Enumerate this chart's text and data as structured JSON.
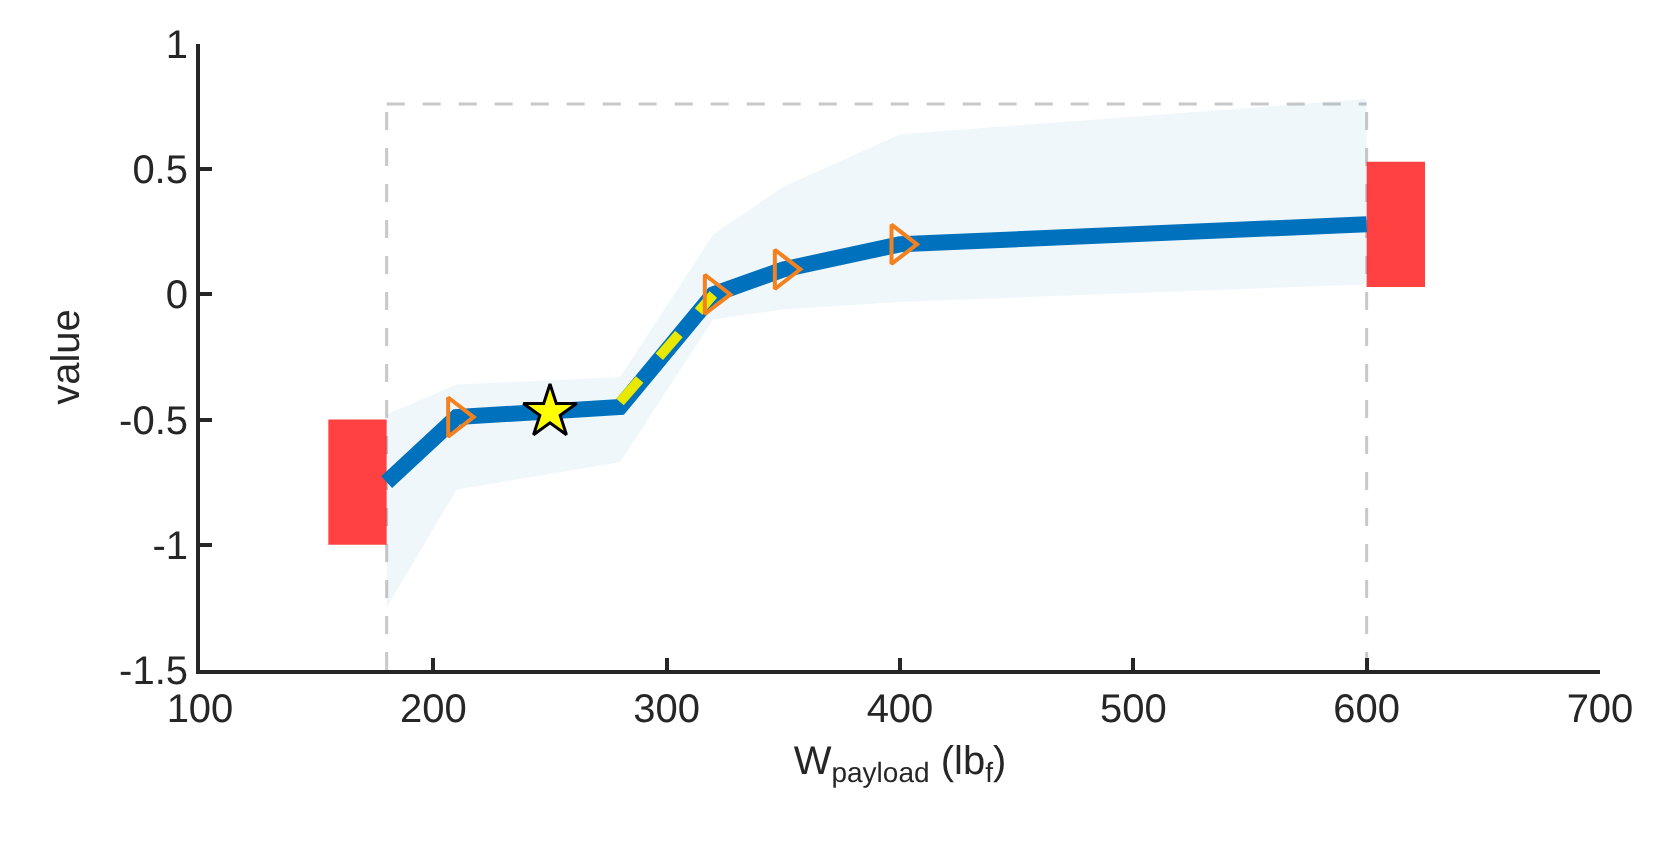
{
  "chart_data": {
    "type": "line",
    "xlabel": "W$_{payload}$ (lb$_{f}$)",
    "ylabel": "value",
    "xlim": [
      100,
      700
    ],
    "ylim": [
      -1.5,
      1
    ],
    "xticks": [
      100,
      200,
      300,
      400,
      500,
      600,
      700
    ],
    "yticks": [
      -1.5,
      -1,
      -0.5,
      0,
      0.5,
      1
    ],
    "grid": false,
    "series": [
      {
        "color": "#0072bd",
        "x": [
          180,
          210,
          280,
          320,
          350,
          400,
          600
        ],
        "values": [
          -0.75,
          -0.49,
          -0.45,
          0.0,
          0.1,
          0.2,
          0.28
        ],
        "lower": [
          -1.25,
          -0.78,
          -0.67,
          -0.1,
          -0.06,
          -0.03,
          0.04
        ],
        "upper": [
          -0.48,
          -0.36,
          -0.33,
          0.24,
          0.43,
          0.64,
          0.78
        ],
        "marker": "none",
        "line_style": "solid"
      },
      {
        "type": "bar",
        "color": "#ff2020",
        "x": [
          180,
          600
        ],
        "base": [
          -1,
          0.03
        ],
        "values": [
          0.5,
          0.5
        ]
      },
      {
        "type": "line",
        "color": "#e8e800",
        "x": [
          280,
          320
        ],
        "values": [
          -0.43,
          0.0
        ],
        "marker": "none",
        "line_style": "dashed"
      },
      {
        "type": "scatter",
        "color": "#f4811f",
        "x": [
          210,
          320,
          350,
          400
        ],
        "values": [
          -0.49,
          0.0,
          0.1,
          0.2
        ],
        "marker": "triangle"
      },
      {
        "type": "scatter",
        "color": "#ffff00",
        "x": [
          250
        ],
        "values": [
          -0.47
        ],
        "marker": "star"
      }
    ],
    "ref_lines": [
      {
        "axis": "x",
        "value": 180,
        "color": "#c8c8c8",
        "line_style": "dashed"
      },
      {
        "axis": "x",
        "value": 600,
        "color": "#c8c8c8",
        "line_style": "dashed"
      },
      {
        "axis": "y",
        "value": 0.76,
        "color": "#c8c8c8",
        "line_style": "dashed"
      }
    ]
  }
}
